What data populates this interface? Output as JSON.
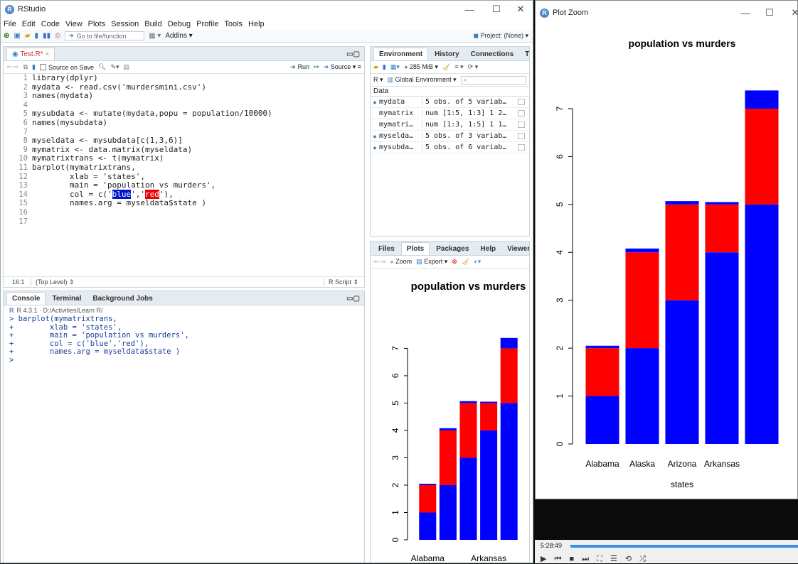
{
  "rstudio": {
    "title": "RStudio",
    "menu": [
      "File",
      "Edit",
      "Code",
      "View",
      "Plots",
      "Session",
      "Build",
      "Debug",
      "Profile",
      "Tools",
      "Help"
    ],
    "toolbar": {
      "goto_placeholder": "Go to file/function",
      "addins": "Addins",
      "project": "Project: (None)"
    },
    "editor": {
      "tab": "Test.R*",
      "source_on_save": "Source on Save",
      "run": "Run",
      "source": "Source",
      "lines": [
        "library(dplyr)",
        "mydata <- read.csv('murdersmini.csv')",
        "names(mydata)",
        "",
        "mysubdata <- mutate(mydata,popu = population/10000)",
        "names(mysubdata)",
        "",
        "myseldata <- mysubdata[c(1,3,6)]",
        "mymatrix <- data.matrix(myseldata)",
        "mymatrixtrans <- t(mymatrix)",
        "barplot(mymatrixtrans,",
        "        xlab = 'states',",
        "        main = 'population vs murders',",
        "        col = c('blue','red'),",
        "        names.arg = myseldata$state )",
        "",
        ""
      ],
      "status_pos": "16:1",
      "status_scope": "(Top Level)",
      "status_type": "R Script"
    },
    "console": {
      "tabs": [
        "Console",
        "Terminal",
        "Background Jobs"
      ],
      "version_path": "R 4.3.1 · D:/Activities/Learn R/",
      "lines": [
        "> barplot(mymatrixtrans,",
        "+        xlab = 'states',",
        "+        main = 'population vs murders',",
        "+        col = c('blue','red'),",
        "+        names.arg = myseldata$state )",
        "> "
      ]
    },
    "environment": {
      "tabs": [
        "Environment",
        "History",
        "Connections",
        "T"
      ],
      "memory": "285 MiB",
      "r_label": "R",
      "scope": "Global Environment",
      "section": "Data",
      "rows": [
        {
          "name": "mydata",
          "value": "5 obs. of 5 variab…",
          "expandable": true
        },
        {
          "name": "mymatrix",
          "value": "num [1:5, 1:3] 1 2…",
          "expandable": false
        },
        {
          "name": "mymatri…",
          "value": "num [1:3, 1:5] 1 1…",
          "expandable": false
        },
        {
          "name": "myselda…",
          "value": "5 obs. of 3 variab…",
          "expandable": true
        },
        {
          "name": "mysubda…",
          "value": "5 obs. of 6 variab…",
          "expandable": true
        }
      ]
    },
    "files": {
      "tabs": [
        "Files",
        "Plots",
        "Packages",
        "Help",
        "Viewer"
      ],
      "zoom": "Zoom",
      "export": "Export"
    }
  },
  "plot_zoom": {
    "title": "Plot Zoom"
  },
  "video_bar": {
    "time": "5:28:49"
  },
  "colors": {
    "blue": "#0000ff",
    "red": "#ff0000",
    "accent": "#4f86c6"
  },
  "chart_data": {
    "type": "bar",
    "stacked": true,
    "title": "population vs murders",
    "xlabel": "states",
    "ylabel": "",
    "categories": [
      "Alabama",
      "Alaska",
      "Arizona",
      "Arkansas",
      ""
    ],
    "series": [
      {
        "values": [
          1.0,
          2.0,
          3.0,
          4.0,
          5.0
        ],
        "color": "#0000ff"
      },
      {
        "values": [
          1.0,
          2.0,
          2.0,
          1.0,
          2.0
        ],
        "color": "#ff0000"
      },
      {
        "values": [
          0.05,
          0.08,
          0.07,
          0.05,
          0.38
        ],
        "color": "#0000ff"
      }
    ],
    "ylim": [
      0,
      7.4
    ],
    "yticks": [
      0,
      1,
      2,
      3,
      4,
      5,
      6,
      7
    ],
    "small_x_labels": [
      "Alabama",
      "",
      "",
      "Arkansas",
      ""
    ]
  }
}
